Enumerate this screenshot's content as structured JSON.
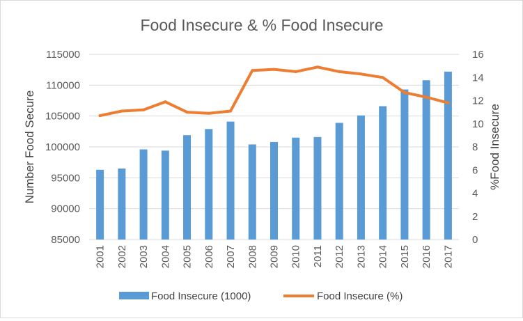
{
  "chart_data": {
    "type": "bar+line",
    "title": "Food Insecure & % Food Insecure",
    "categories": [
      "2001",
      "2002",
      "2003",
      "2004",
      "2005",
      "2006",
      "2007",
      "2008",
      "2009",
      "2010",
      "2011",
      "2012",
      "2013",
      "2014",
      "2015",
      "2016",
      "2017"
    ],
    "series": [
      {
        "name": "Food Insecure (1000)",
        "type": "bar",
        "axis": "left",
        "color": "#5B9BD5",
        "values": [
          96300,
          96500,
          99600,
          99400,
          101900,
          102900,
          104100,
          100400,
          100800,
          101500,
          101600,
          103900,
          105100,
          106600,
          109300,
          110800,
          112200
        ]
      },
      {
        "name": "Food Insecure (%)",
        "type": "line",
        "axis": "right",
        "color": "#ED7D31",
        "values": [
          10.7,
          11.1,
          11.2,
          11.9,
          11.0,
          10.9,
          11.1,
          14.6,
          14.7,
          14.5,
          14.9,
          14.5,
          14.3,
          14.0,
          12.7,
          12.3,
          11.8
        ]
      }
    ],
    "ylabel_left": "Number Food Secure",
    "ylabel_right": "%Food Insecure",
    "ylim_left": [
      85000,
      115000
    ],
    "yticks_left": [
      "85000",
      "90000",
      "95000",
      "100000",
      "105000",
      "110000",
      "115000"
    ],
    "ylim_right": [
      0,
      16
    ],
    "yticks_right": [
      "0",
      "2",
      "4",
      "6",
      "8",
      "10",
      "12",
      "14",
      "16"
    ],
    "grid": true,
    "legend_position": "bottom"
  }
}
